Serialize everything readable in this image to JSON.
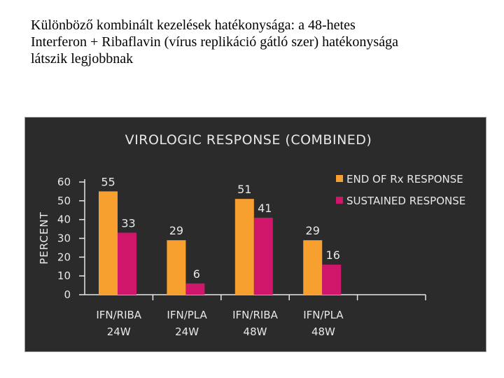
{
  "caption": {
    "lines": [
      "Különböző kombinált kezelések hatékonysága: a 48-hetes",
      "Interferon + Ribaflavin (vírus replikáció gátló szer) hatékonysága",
      "látszik legjobbnak"
    ]
  },
  "chart_data": {
    "type": "bar",
    "title": "VIROLOGIC RESPONSE (COMBINED)",
    "xlabel": "",
    "ylabel": "PERCENT",
    "ylim": [
      0,
      60
    ],
    "yticks": [
      0,
      10,
      20,
      30,
      40,
      50,
      60
    ],
    "grid": false,
    "legend_position": "top-right",
    "categories": [
      [
        "IFN/RIBA",
        "24W"
      ],
      [
        "IFN/PLA",
        "24W"
      ],
      [
        "IFN/RIBA",
        "48W"
      ],
      [
        "IFN/PLA",
        "48W"
      ]
    ],
    "series": [
      {
        "name": "END OF Rx RESPONSE",
        "color": "#f7a030",
        "values": [
          55,
          29,
          51,
          29
        ]
      },
      {
        "name": "SUSTAINED RESPONSE",
        "color": "#d0166a",
        "values": [
          33,
          6,
          41,
          16
        ]
      }
    ]
  }
}
